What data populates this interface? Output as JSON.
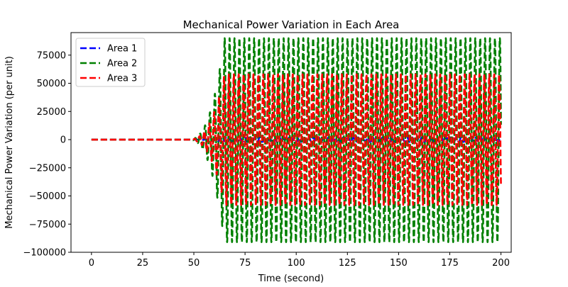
{
  "chart_data": {
    "type": "line",
    "title": "Mechanical Power Variation in Each Area",
    "xlabel": "Time (second)",
    "ylabel": "Mechanical Power Variation (per unit)",
    "xlim": [
      -10,
      205
    ],
    "ylim": [
      -100000,
      95000
    ],
    "x_ticks": [
      0,
      25,
      50,
      75,
      100,
      125,
      150,
      175,
      200
    ],
    "x_tick_labels": [
      "0",
      "25",
      "50",
      "75",
      "100",
      "125",
      "150",
      "175",
      "200"
    ],
    "y_ticks": [
      -100000,
      -75000,
      -50000,
      -25000,
      0,
      25000,
      50000,
      75000
    ],
    "y_tick_labels": [
      "−100000",
      "−75000",
      "−50000",
      "−25000",
      "0",
      "25000",
      "50000",
      "75000"
    ],
    "grid": false,
    "legend_position": "top-left",
    "line_style": "dashed",
    "oscillation": {
      "start_time": 47,
      "saturation_time": 65,
      "end_time": 200,
      "period_seconds": 2.4
    },
    "series": [
      {
        "name": "Area 1",
        "color": "#0000ff",
        "amplitude": 2000
      },
      {
        "name": "Area 2",
        "color": "#008000",
        "amplitude": 90000,
        "lower_amplitude": 91000
      },
      {
        "name": "Area 3",
        "color": "#ff0000",
        "amplitude": 58000
      }
    ]
  }
}
